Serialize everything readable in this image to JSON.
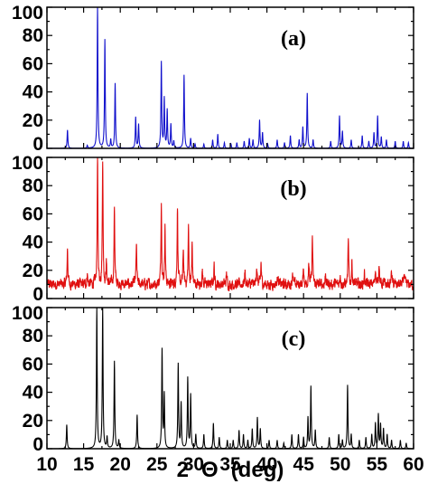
{
  "chart_data": [
    {
      "type": "line",
      "panel_label": "(a)",
      "color": "#1010cc",
      "xlim": [
        10,
        60
      ],
      "ylim": [
        0,
        100
      ],
      "yticks": [
        "0",
        "20",
        "40",
        "60",
        "80",
        "100"
      ],
      "baseline": 0,
      "noise": 0,
      "peaks": [
        [
          12.8,
          13
        ],
        [
          15.5,
          2
        ],
        [
          16.9,
          100
        ],
        [
          17.9,
          77
        ],
        [
          18.7,
          6
        ],
        [
          19.3,
          46
        ],
        [
          22.1,
          22
        ],
        [
          22.5,
          17
        ],
        [
          25.6,
          61
        ],
        [
          26.0,
          35
        ],
        [
          26.4,
          27
        ],
        [
          26.9,
          17
        ],
        [
          27.3,
          5
        ],
        [
          28.7,
          52
        ],
        [
          29.6,
          7
        ],
        [
          30.2,
          3
        ],
        [
          31.4,
          3
        ],
        [
          32.6,
          6
        ],
        [
          33.3,
          10
        ],
        [
          34.2,
          4
        ],
        [
          35.1,
          3
        ],
        [
          35.9,
          4
        ],
        [
          36.9,
          5
        ],
        [
          37.6,
          7
        ],
        [
          38.1,
          6
        ],
        [
          39.0,
          20
        ],
        [
          39.4,
          11
        ],
        [
          40.1,
          3
        ],
        [
          41.4,
          6
        ],
        [
          42.4,
          4
        ],
        [
          43.2,
          9
        ],
        [
          44.4,
          6
        ],
        [
          44.9,
          15
        ],
        [
          45.5,
          39
        ],
        [
          46.3,
          6
        ],
        [
          48.7,
          5
        ],
        [
          49.9,
          23
        ],
        [
          50.3,
          12
        ],
        [
          51.5,
          6
        ],
        [
          53.0,
          9
        ],
        [
          53.9,
          5
        ],
        [
          54.6,
          11
        ],
        [
          55.1,
          23
        ],
        [
          55.6,
          8
        ],
        [
          56.3,
          6
        ],
        [
          57.5,
          5
        ],
        [
          58.6,
          5
        ],
        [
          59.3,
          4
        ]
      ]
    },
    {
      "type": "line",
      "panel_label": "(b)",
      "color": "#e01010",
      "xlim": [
        10,
        60
      ],
      "ylim": [
        0,
        100
      ],
      "yticks": [
        "0",
        "20",
        "40",
        "60",
        "80",
        "100"
      ],
      "baseline": 10,
      "noise": 7,
      "peaks": [
        [
          12.8,
          26
        ],
        [
          15.5,
          8
        ],
        [
          16.9,
          90
        ],
        [
          17.6,
          90
        ],
        [
          18.1,
          15
        ],
        [
          19.2,
          56
        ],
        [
          22.2,
          28
        ],
        [
          25.6,
          60
        ],
        [
          26.1,
          42
        ],
        [
          27.8,
          55
        ],
        [
          28.6,
          25
        ],
        [
          29.3,
          40
        ],
        [
          29.8,
          28
        ],
        [
          31.2,
          10
        ],
        [
          32.8,
          14
        ],
        [
          34.5,
          8
        ],
        [
          37.0,
          10
        ],
        [
          38.6,
          14
        ],
        [
          39.2,
          15
        ],
        [
          41.5,
          8
        ],
        [
          43.5,
          10
        ],
        [
          45.0,
          12
        ],
        [
          45.7,
          17
        ],
        [
          46.2,
          34
        ],
        [
          48.0,
          8
        ],
        [
          50.0,
          8
        ],
        [
          51.1,
          31
        ],
        [
          51.6,
          16
        ],
        [
          53.3,
          8
        ],
        [
          54.8,
          12
        ],
        [
          55.3,
          17
        ],
        [
          57.0,
          10
        ],
        [
          58.7,
          9
        ]
      ]
    },
    {
      "type": "line",
      "panel_label": "(c)",
      "color": "#000000",
      "xlim": [
        10,
        60
      ],
      "ylim": [
        0,
        100
      ],
      "yticks": [
        "0",
        "20",
        "40",
        "60",
        "80",
        "100"
      ],
      "baseline": 0,
      "noise": 0,
      "peaks": [
        [
          12.7,
          17
        ],
        [
          16.8,
          100
        ],
        [
          17.6,
          100
        ],
        [
          18.2,
          8
        ],
        [
          19.2,
          62
        ],
        [
          19.8,
          6
        ],
        [
          22.3,
          24
        ],
        [
          25.7,
          70
        ],
        [
          26.0,
          38
        ],
        [
          27.9,
          60
        ],
        [
          28.3,
          32
        ],
        [
          29.2,
          50
        ],
        [
          29.6,
          38
        ],
        [
          30.3,
          10
        ],
        [
          31.4,
          10
        ],
        [
          32.7,
          18
        ],
        [
          33.5,
          8
        ],
        [
          34.6,
          6
        ],
        [
          35.4,
          6
        ],
        [
          36.2,
          13
        ],
        [
          36.8,
          10
        ],
        [
          37.4,
          6
        ],
        [
          38.0,
          14
        ],
        [
          38.7,
          22
        ],
        [
          39.1,
          14
        ],
        [
          40.3,
          6
        ],
        [
          41.4,
          6
        ],
        [
          42.3,
          4
        ],
        [
          43.4,
          10
        ],
        [
          44.3,
          10
        ],
        [
          45.0,
          8
        ],
        [
          45.6,
          22
        ],
        [
          46.0,
          44
        ],
        [
          46.6,
          13
        ],
        [
          48.5,
          8
        ],
        [
          49.8,
          10
        ],
        [
          50.3,
          6
        ],
        [
          51.0,
          45
        ],
        [
          51.5,
          10
        ],
        [
          52.6,
          6
        ],
        [
          53.5,
          8
        ],
        [
          54.3,
          10
        ],
        [
          54.8,
          18
        ],
        [
          55.2,
          24
        ],
        [
          55.5,
          17
        ],
        [
          55.9,
          14
        ],
        [
          56.4,
          10
        ],
        [
          57.0,
          6
        ],
        [
          58.2,
          6
        ],
        [
          59.0,
          4
        ]
      ]
    }
  ],
  "x_axis": {
    "ticks": [
      "10",
      "15",
      "20",
      "25",
      "30",
      "35",
      "40",
      "45",
      "50",
      "55",
      "60"
    ],
    "title_prefix": "2",
    "title_symbol": "Θ",
    "title_unit": "(deg)"
  }
}
